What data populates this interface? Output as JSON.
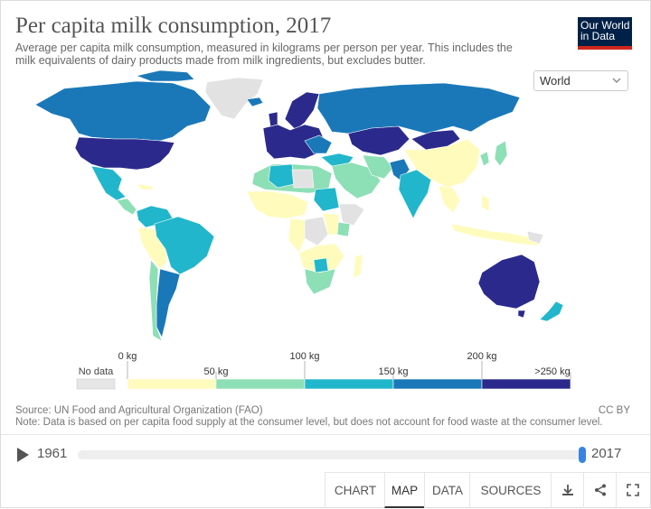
{
  "header": {
    "title": "Per capita milk consumption, 2017",
    "subtitle": "Average per capita milk consumption, measured in kilograms per person per year. This includes the milk equivalents of dairy products made from milk ingredients, but excludes butter.",
    "logo_line1": "Our World",
    "logo_line2": "in Data"
  },
  "region_select": {
    "value": "World"
  },
  "legend": {
    "no_data": "No data",
    "ticks": [
      "0 kg",
      "50 kg",
      "100 kg",
      "150 kg",
      "200 kg",
      ">250 kg"
    ],
    "colors": [
      "#fffbbc",
      "#8ddfb6",
      "#21b6cb",
      "#1a78b8",
      "#2b2a8c"
    ],
    "no_data_color": "#e6e6e6"
  },
  "footer": {
    "source": "Source: UN Food and Agricultural Organization (FAO)",
    "note": "Note: Data is based on per capita food supply at the consumer level, but does not account for food waste at the consumer level.",
    "license": "CC BY"
  },
  "timeline": {
    "start_year": "1961",
    "end_year": "2017",
    "position": 1.0
  },
  "tabs": [
    "CHART",
    "MAP",
    "DATA",
    "SOURCES"
  ],
  "active_tab": "MAP",
  "icons": [
    "download-icon",
    "share-icon",
    "fullscreen-icon"
  ]
}
